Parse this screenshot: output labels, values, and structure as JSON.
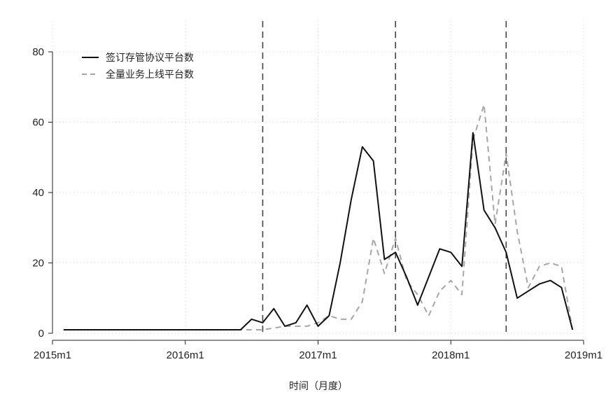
{
  "chart_data": {
    "type": "line",
    "title": "",
    "xlabel": "时间（月度）",
    "ylabel": "",
    "ylim": [
      0,
      80
    ],
    "y_ticks": [
      0,
      20,
      40,
      60,
      80
    ],
    "x_tick_labels": [
      "2015m1",
      "2016m1",
      "2017m1",
      "2018m1",
      "2019m1"
    ],
    "x_tick_months": [
      0,
      12,
      24,
      36,
      48
    ],
    "x_range_months": [
      0,
      48
    ],
    "vertical_reference_lines_months": [
      19,
      31,
      41
    ],
    "grid": true,
    "legend_position": "top-left",
    "series": [
      {
        "name": "签订存管协议平台数",
        "style": "solid",
        "color": "#111111",
        "points": [
          [
            1,
            1
          ],
          [
            2,
            1
          ],
          [
            3,
            1
          ],
          [
            4,
            1
          ],
          [
            5,
            1
          ],
          [
            6,
            1
          ],
          [
            7,
            1
          ],
          [
            8,
            1
          ],
          [
            9,
            1
          ],
          [
            10,
            1
          ],
          [
            11,
            1
          ],
          [
            12,
            1
          ],
          [
            13,
            1
          ],
          [
            14,
            1
          ],
          [
            15,
            1
          ],
          [
            16,
            1
          ],
          [
            17,
            1
          ],
          [
            18,
            4
          ],
          [
            19,
            3
          ],
          [
            20,
            7
          ],
          [
            21,
            2
          ],
          [
            22,
            3
          ],
          [
            23,
            8
          ],
          [
            24,
            2
          ],
          [
            25,
            5
          ],
          [
            26,
            20
          ],
          [
            27,
            38
          ],
          [
            28,
            53
          ],
          [
            29,
            49
          ],
          [
            30,
            21
          ],
          [
            31,
            23
          ],
          [
            32,
            16
          ],
          [
            33,
            8
          ],
          [
            34,
            16
          ],
          [
            35,
            24
          ],
          [
            36,
            23
          ],
          [
            37,
            19
          ],
          [
            38,
            57
          ],
          [
            39,
            35
          ],
          [
            40,
            30
          ],
          [
            41,
            23
          ],
          [
            42,
            10
          ],
          [
            43,
            12
          ],
          [
            44,
            14
          ],
          [
            45,
            15
          ],
          [
            46,
            13
          ],
          [
            47,
            1
          ]
        ]
      },
      {
        "name": "全量业务上线平台数",
        "style": "dashed",
        "color": "#a6a6a6",
        "points": [
          [
            6,
            1
          ],
          [
            7,
            1
          ],
          [
            8,
            1
          ],
          [
            9,
            1
          ],
          [
            10,
            1
          ],
          [
            11,
            1
          ],
          [
            12,
            1
          ],
          [
            13,
            1
          ],
          [
            14,
            1
          ],
          [
            15,
            1
          ],
          [
            16,
            1
          ],
          [
            17,
            1
          ],
          [
            18,
            1
          ],
          [
            19,
            1
          ],
          [
            20,
            1.5
          ],
          [
            21,
            2
          ],
          [
            22,
            2
          ],
          [
            23,
            2
          ],
          [
            24,
            3
          ],
          [
            25,
            5
          ],
          [
            26,
            4
          ],
          [
            27,
            4
          ],
          [
            28,
            9
          ],
          [
            29,
            27
          ],
          [
            30,
            17
          ],
          [
            31,
            27
          ],
          [
            32,
            15
          ],
          [
            33,
            11
          ],
          [
            34,
            5
          ],
          [
            35,
            12
          ],
          [
            36,
            15
          ],
          [
            37,
            11
          ],
          [
            38,
            55
          ],
          [
            39,
            65
          ],
          [
            40,
            31
          ],
          [
            41,
            51
          ],
          [
            42,
            29
          ],
          [
            43,
            13
          ],
          [
            44,
            19
          ],
          [
            45,
            20
          ],
          [
            46,
            19
          ],
          [
            47,
            1
          ]
        ]
      }
    ]
  }
}
